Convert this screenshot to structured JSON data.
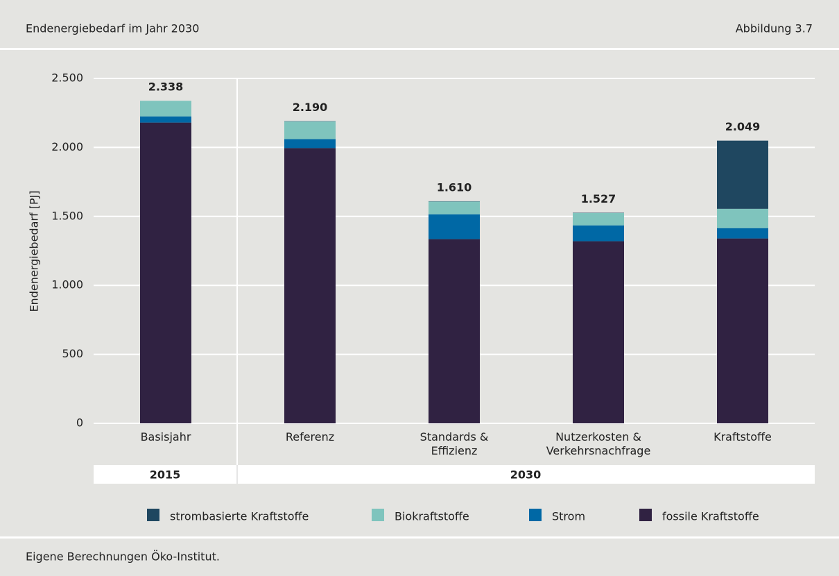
{
  "header": {
    "title": "Endenergiebedarf im Jahr 2030",
    "figure": "Abbildung 3.7"
  },
  "chart_data": {
    "type": "stacked_bar",
    "ylabel": "Endenergiebedarf [PJ]",
    "categories": [
      "Basisjahr",
      "Referenz",
      "Standards & Effizienz",
      "Nutzerkosten & Verkehrsnachfrage",
      "Kraftstoffe"
    ],
    "groups": [
      "2015",
      "2030"
    ],
    "series": [
      {
        "name": "strombasierte Kraftstoffe",
        "color": "#1f4760",
        "values": [
          0,
          2,
          2,
          2,
          494
        ]
      },
      {
        "name": "Biokraftstoffe",
        "color": "#7fc4bd",
        "values": [
          113,
          128,
          93,
          90,
          140
        ]
      },
      {
        "name": "Strom",
        "color": "#0068a5",
        "values": [
          45,
          65,
          180,
          115,
          75
        ]
      },
      {
        "name": "fossile Kraftstoffe",
        "color": "#302242",
        "values": [
          2180,
          1995,
          1335,
          1320,
          1340
        ]
      }
    ],
    "totals": [
      2338,
      2190,
      1610,
      1527,
      2049
    ],
    "value_labels": [
      "2.338",
      "2.190",
      "1.610",
      "1.527",
      "2.049"
    ],
    "ylim": [
      0,
      2500
    ],
    "yticks": [
      0,
      500,
      {
        "value": 1000,
        "label": "1.000"
      },
      {
        "value": 1500,
        "label": "1.500"
      },
      {
        "value": 2000,
        "label": "2.000"
      },
      {
        "value": 2500,
        "label": "2.500"
      }
    ],
    "grid": true
  },
  "footer": {
    "source": "Eigene Berechnungen Öko-Institut."
  }
}
